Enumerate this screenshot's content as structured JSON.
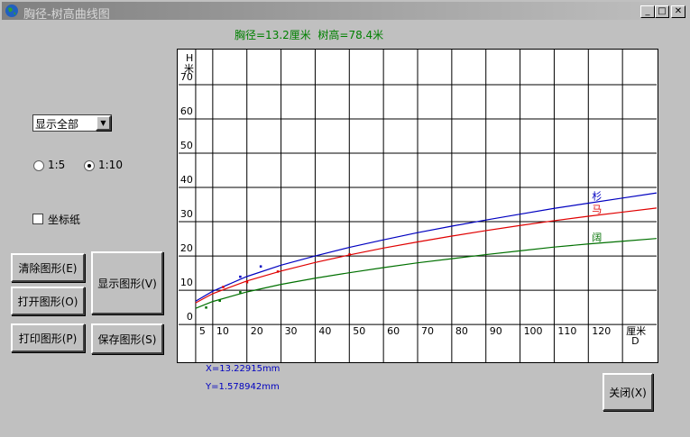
{
  "window": {
    "title": "胸径-树高曲线图"
  },
  "header": "胸径=13.2厘米  树高=78.4米",
  "controls": {
    "dropdown": "显示全部",
    "radio": [
      "1:5",
      "1:10"
    ],
    "checkbox": "坐标纸"
  },
  "buttons": {
    "clear": "清除图形(E)",
    "open": "打开图形(O)",
    "print": "打印图形(P)",
    "show": "显示图形(V)",
    "save": "保存图形(S)",
    "close": "关闭(X)"
  },
  "status": [
    "X=13.22915mm",
    "Y=1.578942mm"
  ],
  "chart_data": {
    "type": "line",
    "x": [
      5,
      10,
      20,
      30,
      40,
      50,
      60,
      70,
      80,
      90,
      100,
      110,
      120,
      130,
      140
    ],
    "xlim": [
      0,
      140
    ],
    "ylim": [
      -10.5,
      80
    ],
    "xticks": [
      5,
      10,
      20,
      30,
      40,
      50,
      60,
      70,
      80,
      90,
      100,
      110,
      120,
      {
        "value": 130,
        "label": null
      }
    ],
    "yticks": [
      0,
      10,
      20,
      30,
      40,
      50,
      60,
      70
    ],
    "x_label": [
      "厘米",
      "D"
    ],
    "y_label": [
      "H",
      "米"
    ],
    "grid": true,
    "series": [
      {
        "name": "杉",
        "color": "#0000c0",
        "values": [
          6.8,
          9.7,
          14.0,
          17.3,
          20.0,
          22.5,
          24.7,
          26.8,
          28.7,
          30.5,
          32.2,
          33.9,
          35.4,
          36.9,
          38.4
        ],
        "points": {
          "x": [
            18,
            24
          ],
          "y": [
            14,
            17
          ]
        }
      },
      {
        "name": "马",
        "color": "#e00000",
        "values": [
          6.3,
          9.0,
          12.7,
          15.6,
          18.1,
          20.3,
          22.3,
          24.1,
          25.8,
          27.4,
          28.9,
          30.3,
          31.6,
          32.8,
          34.0
        ],
        "points": {
          "x": [
            13,
            20,
            29,
            50
          ],
          "y": [
            11,
            12.4,
            15.5,
            20.5
          ]
        }
      },
      {
        "name": "阔",
        "color": "#007000",
        "values": [
          4.7,
          6.7,
          9.5,
          11.7,
          13.5,
          15.1,
          16.6,
          18.0,
          19.2,
          20.4,
          21.5,
          22.6,
          23.5,
          24.3,
          25.1
        ],
        "points": {
          "x": [
            8,
            12,
            18
          ],
          "y": [
            5,
            7,
            9.5
          ]
        }
      }
    ]
  }
}
